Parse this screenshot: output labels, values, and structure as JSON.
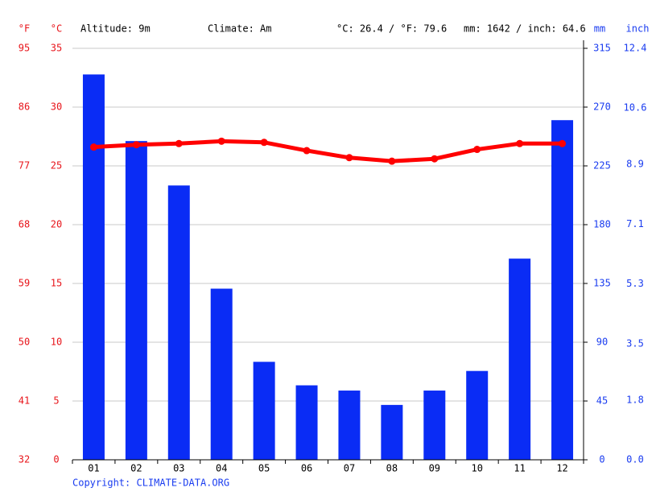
{
  "chart_data": {
    "type": "bar",
    "header": [
      "Altitude: 9m",
      "Climate: Am",
      "°C: 26.4 / °F: 79.6",
      "mm: 1642 / inch: 64.6"
    ],
    "units": {
      "fahrenheit": "°F",
      "celsius": "°C",
      "mm": "mm",
      "inch": "inch"
    },
    "footer": "Copyright: CLIMATE-DATA.ORG",
    "categories": [
      "01",
      "02",
      "03",
      "04",
      "05",
      "06",
      "07",
      "08",
      "09",
      "10",
      "11",
      "12"
    ],
    "series": [
      {
        "type": "bar",
        "axis": "y2",
        "color": "#0a2cf5",
        "values": [
          295,
          244,
          210,
          131,
          75,
          57,
          53,
          42,
          53,
          68,
          154,
          260
        ]
      },
      {
        "type": "line",
        "color": "#ff0000",
        "values": [
          26.6,
          26.8,
          26.9,
          27.1,
          27.0,
          26.3,
          25.7,
          25.4,
          25.6,
          26.4,
          26.9,
          26.9
        ]
      }
    ],
    "ylim": [
      0,
      35
    ],
    "yticks": [
      0,
      5,
      10,
      15,
      20,
      25,
      30,
      35
    ],
    "y2lim": [
      0,
      315
    ],
    "y2ticks": [
      0,
      45,
      90,
      135,
      180,
      225,
      270,
      315
    ],
    "fahrenheit_lim": [
      32,
      95
    ],
    "fahrenheit_ticks": [
      32,
      41,
      50,
      59,
      68,
      77,
      86,
      95
    ],
    "inch_lim": [
      0,
      12.4
    ],
    "inch_ticks": [
      {
        "value": 0,
        "label": "0.0"
      },
      1.8,
      3.5,
      5.3,
      7.1,
      8.9,
      10.6,
      12.4
    ],
    "grid": true
  }
}
